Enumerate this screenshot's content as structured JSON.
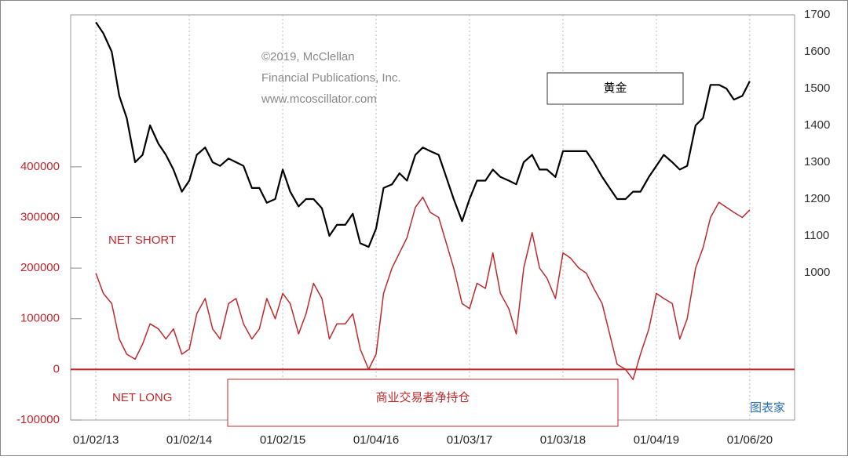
{
  "chart_data": {
    "type": "line",
    "annotations": [
      "©2019, McClellan",
      "Financial Publications, Inc.",
      "www.mcoscillator.com"
    ],
    "region_labels": [
      "NET SHORT",
      "NET LONG"
    ],
    "watermark": "图表家",
    "x": [
      2013.0,
      2013.08,
      2013.17,
      2013.25,
      2013.33,
      2013.42,
      2013.5,
      2013.58,
      2013.67,
      2013.75,
      2013.83,
      2013.92,
      2014.0,
      2014.08,
      2014.17,
      2014.25,
      2014.33,
      2014.42,
      2014.5,
      2014.58,
      2014.67,
      2014.75,
      2014.83,
      2014.92,
      2015.0,
      2015.08,
      2015.17,
      2015.25,
      2015.33,
      2015.42,
      2015.5,
      2015.58,
      2015.67,
      2015.75,
      2015.83,
      2015.92,
      2016.0,
      2016.08,
      2016.17,
      2016.25,
      2016.33,
      2016.42,
      2016.5,
      2016.58,
      2016.67,
      2016.75,
      2016.83,
      2016.92,
      2017.0,
      2017.08,
      2017.17,
      2017.25,
      2017.33,
      2017.42,
      2017.5,
      2017.58,
      2017.67,
      2017.75,
      2017.83,
      2017.92,
      2018.0,
      2018.08,
      2018.17,
      2018.25,
      2018.33,
      2018.42,
      2018.5,
      2018.58,
      2018.67,
      2018.75,
      2018.83,
      2018.92,
      2019.0,
      2019.08,
      2019.17,
      2019.25,
      2019.33,
      2019.42,
      2019.5,
      2019.58,
      2019.67,
      2019.75,
      2019.83,
      2019.92,
      2020.0
    ],
    "series": [
      {
        "name": "黄金",
        "color": "#000000",
        "axis": "y2",
        "values": [
          1680,
          1650,
          1600,
          1480,
          1420,
          1300,
          1320,
          1400,
          1350,
          1320,
          1280,
          1220,
          1250,
          1320,
          1340,
          1300,
          1290,
          1310,
          1300,
          1290,
          1230,
          1230,
          1190,
          1200,
          1280,
          1220,
          1180,
          1200,
          1200,
          1175,
          1100,
          1130,
          1130,
          1160,
          1080,
          1070,
          1120,
          1230,
          1240,
          1270,
          1250,
          1320,
          1340,
          1330,
          1320,
          1260,
          1200,
          1140,
          1200,
          1250,
          1250,
          1280,
          1260,
          1250,
          1240,
          1300,
          1320,
          1280,
          1280,
          1260,
          1330,
          1330,
          1330,
          1330,
          1300,
          1260,
          1230,
          1200,
          1200,
          1220,
          1220,
          1260,
          1290,
          1320,
          1300,
          1280,
          1290,
          1400,
          1420,
          1510,
          1510,
          1500,
          1470,
          1480,
          1520
        ]
      },
      {
        "name": "商业交易者净持仓",
        "color": "#c0282d",
        "values": [
          190000,
          150000,
          130000,
          60000,
          30000,
          20000,
          50000,
          90000,
          80000,
          60000,
          80000,
          30000,
          40000,
          110000,
          140000,
          80000,
          60000,
          130000,
          140000,
          90000,
          60000,
          80000,
          140000,
          100000,
          150000,
          130000,
          70000,
          110000,
          170000,
          140000,
          60000,
          90000,
          90000,
          110000,
          40000,
          0,
          30000,
          150000,
          200000,
          230000,
          260000,
          320000,
          340000,
          310000,
          300000,
          250000,
          200000,
          130000,
          120000,
          170000,
          160000,
          230000,
          150000,
          120000,
          70000,
          200000,
          270000,
          200000,
          180000,
          140000,
          230000,
          220000,
          200000,
          190000,
          160000,
          130000,
          70000,
          10000,
          0,
          -20000,
          30000,
          80000,
          150000,
          140000,
          130000,
          60000,
          100000,
          200000,
          240000,
          300000,
          330000,
          320000,
          310000,
          300000,
          315000
        ]
      }
    ],
    "xlim": [
      2012.73,
      2020.48
    ],
    "xticks": [
      {
        "value": 2013.0,
        "label": "01/02/13"
      },
      {
        "value": 2014.0,
        "label": "01/02/14"
      },
      {
        "value": 2015.0,
        "label": "01/02/15"
      },
      {
        "value": 2016.0,
        "label": "01/04/16"
      },
      {
        "value": 2017.0,
        "label": "01/03/17"
      },
      {
        "value": 2018.0,
        "label": "01/03/18"
      },
      {
        "value": 2019.0,
        "label": "01/04/19"
      },
      {
        "value": 2020.0,
        "label": "01/06/20"
      }
    ],
    "ylim": [
      -100000,
      700000
    ],
    "yticks": [
      -100000,
      0,
      100000,
      200000,
      300000,
      400000
    ],
    "y2lim": [
      600,
      1700
    ],
    "y2ticks": [
      1000,
      1100,
      1200,
      1300,
      1400,
      1500,
      1600,
      1700
    ],
    "grid": true
  }
}
